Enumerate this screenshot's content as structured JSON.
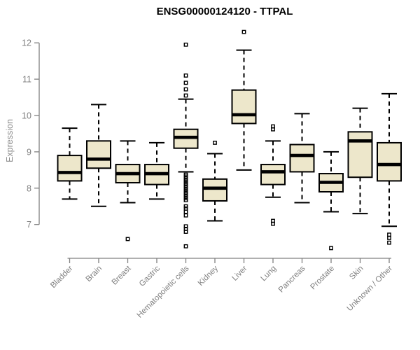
{
  "header": {
    "title": "ENSG00000124120 - TTPAL"
  },
  "colors": {
    "box_fill": "#EDE7CB",
    "box_stroke": "#000000",
    "median": "#000000",
    "whisker": "#000000",
    "outlier": "#000000",
    "axis": "#808080",
    "tick_label": "#808080",
    "category_label": "#808080",
    "title": "#000000",
    "background": "#ffffff"
  },
  "chart_data": {
    "type": "boxplot",
    "title": "ENSG00000124120 - TTPAL",
    "xlabel": "",
    "ylabel": "Expression",
    "ylim": [
      6.1,
      12.5
    ],
    "yticks": [
      7,
      8,
      9,
      10,
      11,
      12
    ],
    "grid": false,
    "legend": false,
    "categories": [
      "Bladder",
      "Brain",
      "Breast",
      "Gastric",
      "Hematopoietic cells",
      "Kidney",
      "Liver",
      "Lung",
      "Pancreas",
      "Prostate",
      "Skin",
      "Unknown / Other"
    ],
    "series": [
      {
        "category": "Bladder",
        "whisker_low": 7.7,
        "q1": 8.2,
        "median": 8.43,
        "q3": 8.9,
        "whisker_high": 9.65,
        "outliers": []
      },
      {
        "category": "Brain",
        "whisker_low": 7.5,
        "q1": 8.55,
        "median": 8.8,
        "q3": 9.3,
        "whisker_high": 10.3,
        "outliers": []
      },
      {
        "category": "Breast",
        "whisker_low": 7.6,
        "q1": 8.15,
        "median": 8.4,
        "q3": 8.65,
        "whisker_high": 9.3,
        "outliers": [
          6.6
        ]
      },
      {
        "category": "Gastric",
        "whisker_low": 7.7,
        "q1": 8.1,
        "median": 8.4,
        "q3": 8.65,
        "whisker_high": 9.25,
        "outliers": []
      },
      {
        "category": "Hematopoietic cells",
        "whisker_low": 8.45,
        "q1": 9.1,
        "median": 9.4,
        "q3": 9.62,
        "whisker_high": 10.45,
        "outliers": [
          11.95,
          11.1,
          10.9,
          10.72,
          10.55,
          8.37,
          8.32,
          8.27,
          8.22,
          8.17,
          8.12,
          8.07,
          8.02,
          7.97,
          7.92,
          7.87,
          7.82,
          7.77,
          7.72,
          7.67,
          7.5,
          7.44,
          7.35,
          7.25,
          6.95,
          6.88,
          6.8,
          6.4
        ]
      },
      {
        "category": "Kidney",
        "whisker_low": 7.1,
        "q1": 7.65,
        "median": 8.0,
        "q3": 8.25,
        "whisker_high": 8.95,
        "outliers": [
          9.25
        ]
      },
      {
        "category": "Liver",
        "whisker_low": 8.5,
        "q1": 9.78,
        "median": 10.02,
        "q3": 10.7,
        "whisker_high": 11.8,
        "outliers": [
          12.3
        ]
      },
      {
        "category": "Lung",
        "whisker_low": 7.75,
        "q1": 8.1,
        "median": 8.45,
        "q3": 8.65,
        "whisker_high": 9.3,
        "outliers": [
          9.7,
          9.62,
          7.1,
          7.02
        ]
      },
      {
        "category": "Pancreas",
        "whisker_low": 7.6,
        "q1": 8.45,
        "median": 8.9,
        "q3": 9.2,
        "whisker_high": 10.05,
        "outliers": []
      },
      {
        "category": "Prostate",
        "whisker_low": 7.35,
        "q1": 7.9,
        "median": 8.16,
        "q3": 8.4,
        "whisker_high": 9.0,
        "outliers": [
          6.35
        ]
      },
      {
        "category": "Skin",
        "whisker_low": 7.3,
        "q1": 8.3,
        "median": 9.3,
        "q3": 9.55,
        "whisker_high": 10.2,
        "outliers": []
      },
      {
        "category": "Unknown / Other",
        "whisker_low": 6.95,
        "q1": 8.2,
        "median": 8.65,
        "q3": 9.25,
        "whisker_high": 10.6,
        "outliers": [
          6.72,
          6.63,
          6.5
        ]
      }
    ]
  }
}
